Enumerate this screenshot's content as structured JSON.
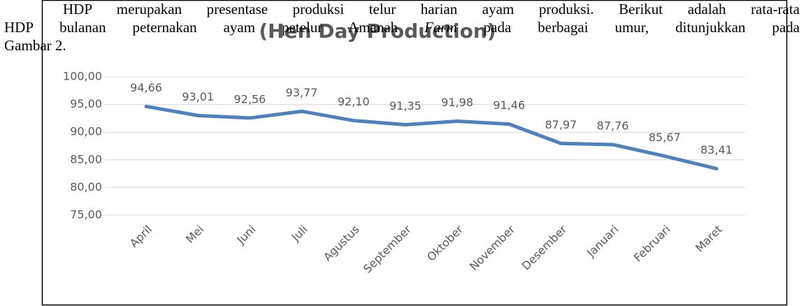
{
  "paragraph": {
    "line1": "HDP merupakan presentase produksi telur harian ayam produksi. Berikut adalah rata-rata",
    "line2": [
      "HDP bulanan peternakan ayam petelur Amanah ",
      "Farm",
      " pada berbagai umur, ditunjukkan pada"
    ],
    "line3": "Gambar 2."
  },
  "chart_data": {
    "type": "line",
    "title": "(Hen Day Production)",
    "categories": [
      "April",
      "Mei",
      "Juni",
      "Juli",
      "Agustus",
      "September",
      "Oktober",
      "November",
      "Desember",
      "Januari",
      "Februari",
      "Maret"
    ],
    "series": [
      {
        "name": "HDP",
        "color": "#4f81bd",
        "values": [
          94.66,
          93.01,
          92.56,
          93.77,
          92.1,
          91.35,
          91.98,
          91.46,
          87.97,
          87.76,
          85.67,
          83.41
        ],
        "value_labels": [
          "94,66",
          "93,01",
          "92,56",
          "93,77",
          "92,10",
          "91,35",
          "91,98",
          "91,46",
          "87,97",
          "87,76",
          "85,67",
          "83,41"
        ]
      }
    ],
    "ylim": [
      75,
      100
    ],
    "yticks": [
      {
        "value": 75,
        "label": "75,00"
      },
      {
        "value": 80,
        "label": "80,00"
      },
      {
        "value": 85,
        "label": "85,00"
      },
      {
        "value": 90,
        "label": "90,00"
      },
      {
        "value": 95,
        "label": "95,00"
      },
      {
        "value": 100,
        "label": "100,00"
      }
    ],
    "grid": true
  }
}
